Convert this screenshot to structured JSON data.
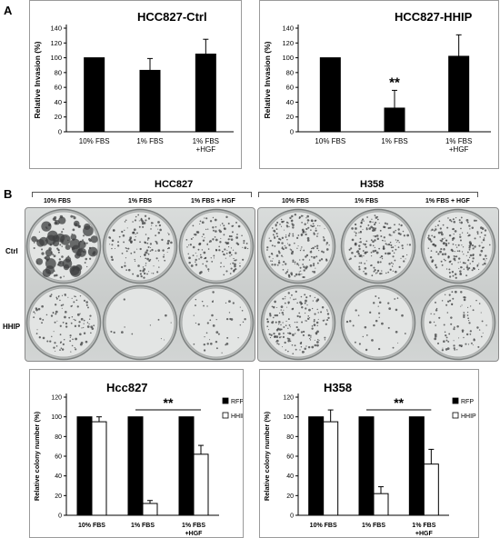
{
  "panels": {
    "a_letter": "A",
    "b_letter": "B"
  },
  "plates": {
    "left_title": "HCC827",
    "right_title": "H358",
    "columns": [
      "10% FBS",
      "1% FBS",
      "1% FBS + HGF"
    ],
    "rows": [
      "Ctrl",
      "HHIP"
    ]
  },
  "chart_data": [
    {
      "type": "bar",
      "title": "HCC827-Ctrl",
      "ylabel": "Relative Invasion (%)",
      "categories": [
        "10% FBS",
        "1% FBS",
        "1% FBS\n+HGF"
      ],
      "ylim": [
        0,
        140
      ],
      "yticks": [
        0,
        20,
        40,
        60,
        80,
        100,
        120,
        140
      ],
      "series": [
        {
          "values": [
            100,
            83,
            105
          ],
          "errors": [
            0,
            16,
            20
          ],
          "color": "#000000"
        }
      ],
      "annotations": []
    },
    {
      "type": "bar",
      "title": "HCC827-HHIP",
      "ylabel": "Relative Invasion (%)",
      "categories": [
        "10% FBS",
        "1% FBS",
        "1% FBS\n+HGF"
      ],
      "ylim": [
        0,
        140
      ],
      "yticks": [
        0,
        20,
        40,
        60,
        80,
        100,
        120,
        140
      ],
      "series": [
        {
          "values": [
            100,
            32,
            102
          ],
          "errors": [
            0,
            24,
            29
          ],
          "color": "#000000"
        }
      ],
      "annotations": [
        {
          "text": "**",
          "category": 1
        }
      ]
    },
    {
      "type": "bar",
      "title": "Hcc827",
      "ylabel": "Relative colony number (%)",
      "categories": [
        "10% FBS",
        "1% FBS",
        "1% FBS\n+HGF"
      ],
      "ylim": [
        0,
        120
      ],
      "yticks": [
        0,
        20,
        40,
        60,
        80,
        100,
        120
      ],
      "series": [
        {
          "name": "RFP",
          "values": [
            100,
            100,
            100
          ],
          "errors": [
            0,
            0,
            0
          ],
          "color": "#000000"
        },
        {
          "name": "HHIP",
          "values": [
            95,
            12,
            62
          ],
          "errors": [
            5,
            3,
            9
          ],
          "color": "#ffffff"
        }
      ],
      "legend": "top-right",
      "annotations": [
        {
          "text": "**",
          "bracket_categories": [
            1,
            2
          ]
        }
      ]
    },
    {
      "type": "bar",
      "title": "H358",
      "ylabel": "Relative colony number (%)",
      "categories": [
        "10% FBS",
        "1% FBS",
        "1% FBS\n+HGF"
      ],
      "ylim": [
        0,
        120
      ],
      "yticks": [
        0,
        20,
        40,
        60,
        80,
        100,
        120
      ],
      "series": [
        {
          "name": "RFP",
          "values": [
            100,
            100,
            100
          ],
          "errors": [
            0,
            0,
            0
          ],
          "color": "#000000"
        },
        {
          "name": "HHIP",
          "values": [
            95,
            22,
            52
          ],
          "errors": [
            12,
            7,
            15
          ],
          "color": "#ffffff"
        }
      ],
      "legend": "top-right",
      "annotations": [
        {
          "text": "**",
          "bracket_categories": [
            1,
            2
          ]
        }
      ]
    }
  ]
}
